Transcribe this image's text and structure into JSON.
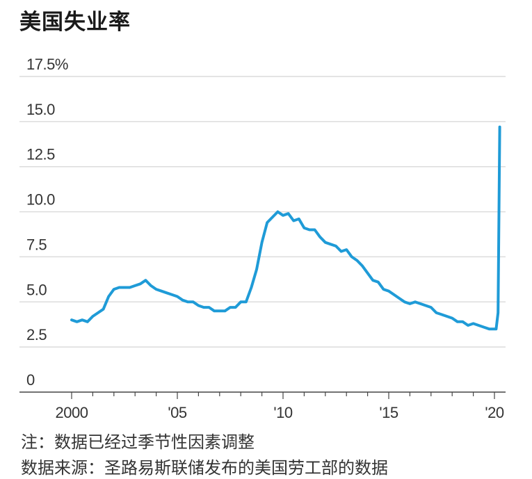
{
  "title": "美国失业率",
  "note": "注：数据已经过季节性因素调整",
  "source": "数据来源：圣路易斯联储发布的美国劳工部的数据",
  "chart_data": {
    "type": "line",
    "title": "美国失业率",
    "xlabel": "",
    "ylabel": "",
    "xlim": [
      1999.2,
      2020.6
    ],
    "ylim": [
      0,
      17.5
    ],
    "y_ticks": [
      {
        "value": 17.5,
        "label": "17.5%"
      },
      {
        "value": 15.0,
        "label": "15.0"
      },
      {
        "value": 12.5,
        "label": "12.5"
      },
      {
        "value": 10.0,
        "label": "10.0"
      },
      {
        "value": 7.5,
        "label": "7.5"
      },
      {
        "value": 5.0,
        "label": "5.0"
      },
      {
        "value": 2.5,
        "label": "2.5"
      },
      {
        "value": 0,
        "label": "0"
      }
    ],
    "x_ticks": [
      {
        "value": 2000,
        "label": "2000"
      },
      {
        "value": 2005,
        "label": "'05"
      },
      {
        "value": 2010,
        "label": "'10"
      },
      {
        "value": 2015,
        "label": "'15"
      },
      {
        "value": 2020,
        "label": "'20"
      }
    ],
    "grid": true,
    "color": "#1f9bd7",
    "series": [
      {
        "x": [
          2000.0,
          2000.25,
          2000.5,
          2000.75,
          2001.0,
          2001.25,
          2001.5,
          2001.75,
          2002.0,
          2002.25,
          2002.5,
          2002.75,
          2003.0,
          2003.25,
          2003.5,
          2003.75,
          2004.0,
          2004.25,
          2004.5,
          2004.75,
          2005.0,
          2005.25,
          2005.5,
          2005.75,
          2006.0,
          2006.25,
          2006.5,
          2006.75,
          2007.0,
          2007.25,
          2007.5,
          2007.75,
          2008.0,
          2008.25,
          2008.5,
          2008.75,
          2009.0,
          2009.25,
          2009.5,
          2009.75,
          2010.0,
          2010.25,
          2010.5,
          2010.75,
          2011.0,
          2011.25,
          2011.5,
          2011.75,
          2012.0,
          2012.25,
          2012.5,
          2012.75,
          2013.0,
          2013.25,
          2013.5,
          2013.75,
          2014.0,
          2014.25,
          2014.5,
          2014.75,
          2015.0,
          2015.25,
          2015.5,
          2015.75,
          2016.0,
          2016.25,
          2016.5,
          2016.75,
          2017.0,
          2017.25,
          2017.5,
          2017.75,
          2018.0,
          2018.25,
          2018.5,
          2018.75,
          2019.0,
          2019.25,
          2019.5,
          2019.75,
          2020.0,
          2020.08,
          2020.17,
          2020.25
        ],
        "values": [
          4.0,
          3.9,
          4.0,
          3.9,
          4.2,
          4.4,
          4.6,
          5.3,
          5.7,
          5.8,
          5.8,
          5.8,
          5.9,
          6.0,
          6.2,
          5.9,
          5.7,
          5.6,
          5.5,
          5.4,
          5.3,
          5.1,
          5.0,
          5.0,
          4.8,
          4.7,
          4.7,
          4.5,
          4.5,
          4.5,
          4.7,
          4.7,
          5.0,
          5.0,
          5.8,
          6.8,
          8.3,
          9.4,
          9.7,
          10.0,
          9.8,
          9.9,
          9.5,
          9.6,
          9.1,
          9.0,
          9.0,
          8.6,
          8.3,
          8.2,
          8.1,
          7.8,
          7.9,
          7.5,
          7.3,
          7.0,
          6.6,
          6.2,
          6.1,
          5.7,
          5.6,
          5.4,
          5.2,
          5.0,
          4.9,
          5.0,
          4.9,
          4.8,
          4.7,
          4.4,
          4.3,
          4.2,
          4.1,
          3.9,
          3.9,
          3.7,
          3.8,
          3.7,
          3.6,
          3.5,
          3.5,
          3.5,
          4.4,
          14.7
        ]
      }
    ]
  }
}
